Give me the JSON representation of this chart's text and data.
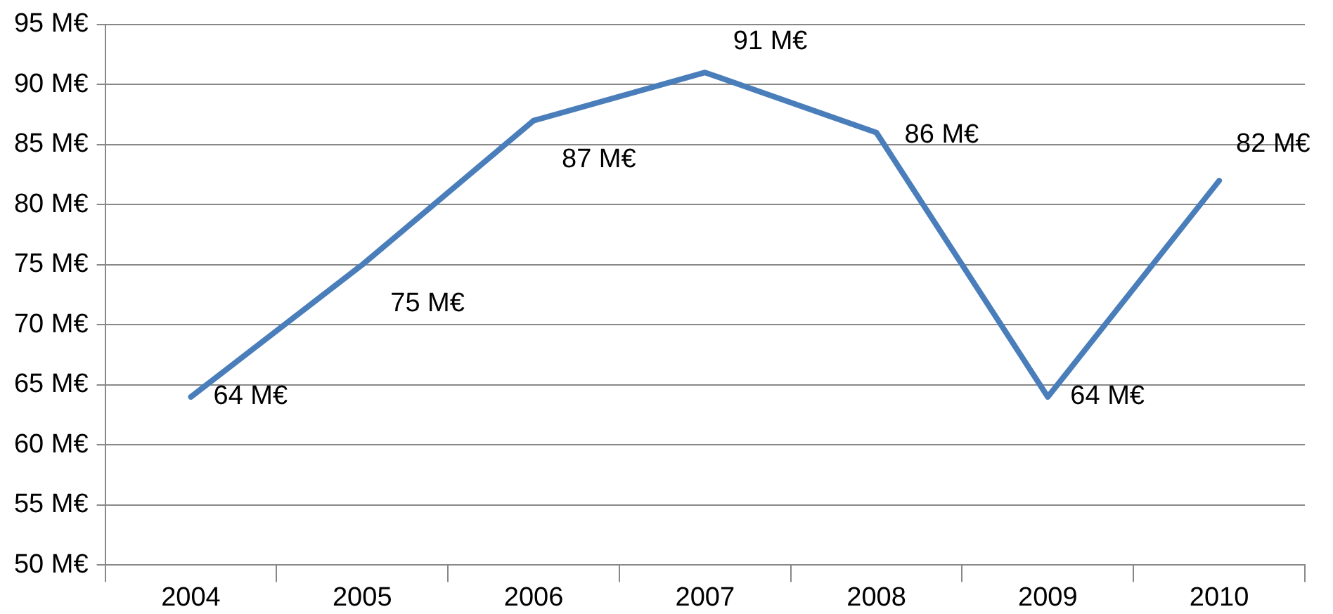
{
  "chart_data": {
    "type": "line",
    "categories": [
      "2004",
      "2005",
      "2006",
      "2007",
      "2008",
      "2009",
      "2010"
    ],
    "series": [
      {
        "color": "#4a7ebb",
        "values": [
          64,
          75,
          87,
          91,
          86,
          64,
          82
        ],
        "value_labels": [
          "64 M€",
          "75 M€",
          "87 M€",
          "91 M€",
          "86 M€",
          "64 M€",
          "82 M€"
        ]
      }
    ],
    "ylim": [
      50,
      95
    ],
    "yticks": [
      {
        "value": 50,
        "label": "50 M€"
      },
      {
        "value": 55,
        "label": "55 M€"
      },
      {
        "value": 60,
        "label": "60 M€"
      },
      {
        "value": 65,
        "label": "65 M€"
      },
      {
        "value": 70,
        "label": "70 M€"
      },
      {
        "value": 75,
        "label": "75 M€"
      },
      {
        "value": 80,
        "label": "80 M€"
      },
      {
        "value": 85,
        "label": "85 M€"
      },
      {
        "value": 90,
        "label": "90 M€"
      },
      {
        "value": 95,
        "label": "95 M€"
      }
    ],
    "grid": "y",
    "legend": false,
    "marker": "none",
    "line_style": "solid"
  }
}
